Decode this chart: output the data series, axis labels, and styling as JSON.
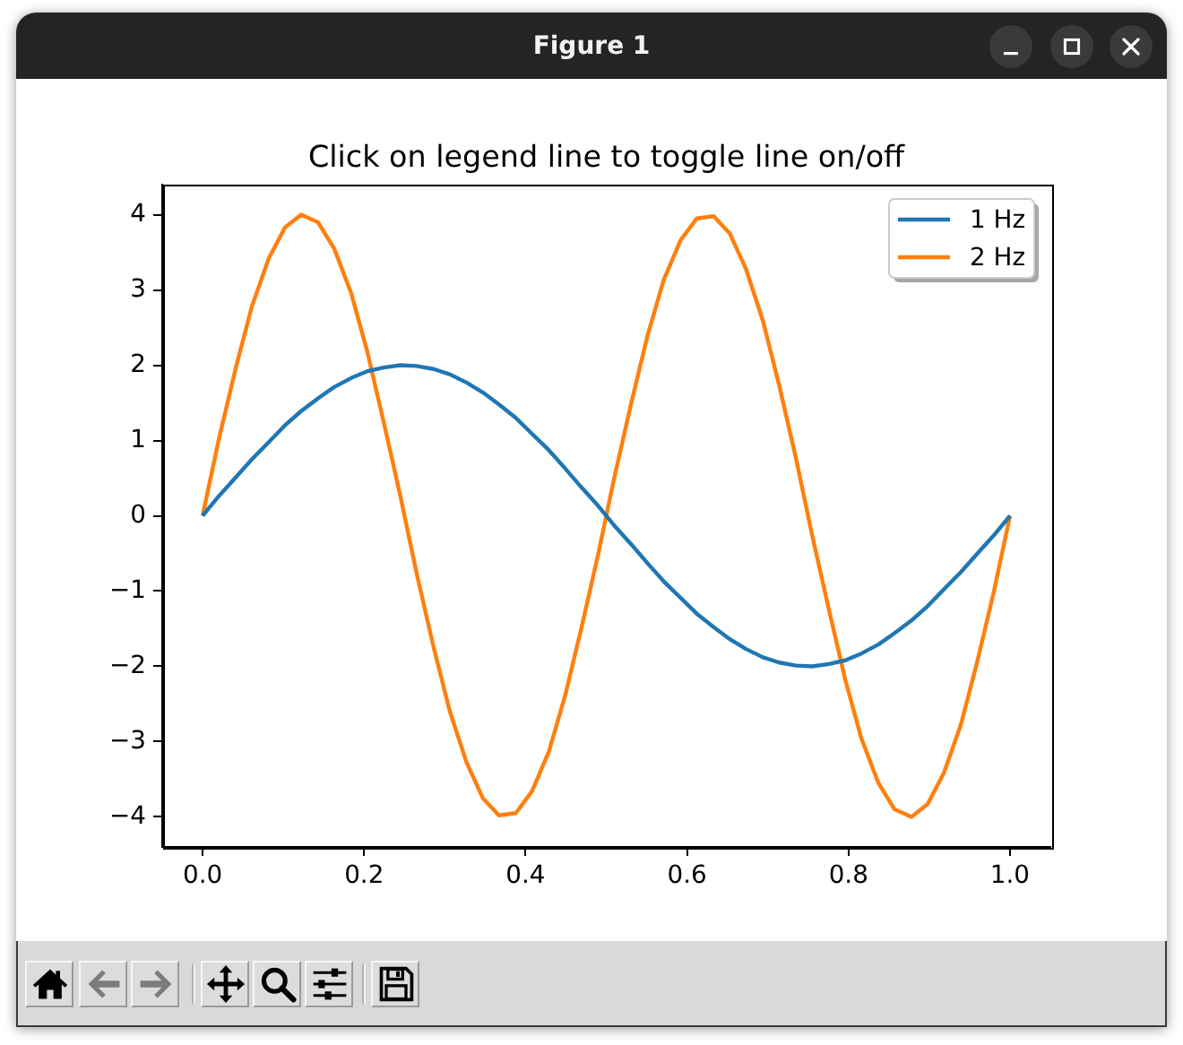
{
  "chart_data": {
    "type": "line",
    "title": "Click on legend line to toggle line on/off",
    "annotations": [
      "Figure 1"
    ],
    "x": [
      0,
      0.02,
      0.041,
      0.061,
      0.082,
      0.102,
      0.122,
      0.143,
      0.163,
      0.184,
      0.204,
      0.224,
      0.245,
      0.265,
      0.286,
      0.306,
      0.327,
      0.347,
      0.367,
      0.388,
      0.408,
      0.429,
      0.449,
      0.469,
      0.49,
      0.51,
      0.531,
      0.551,
      0.571,
      0.592,
      0.612,
      0.633,
      0.653,
      0.673,
      0.694,
      0.714,
      0.735,
      0.755,
      0.776,
      0.796,
      0.816,
      0.837,
      0.857,
      0.878,
      0.898,
      0.918,
      0.939,
      0.959,
      0.98,
      1
    ],
    "series": [
      {
        "name": "1 Hz",
        "color": "#1f77b4",
        "values": [
          0,
          0.26,
          0.51,
          0.75,
          0.98,
          1.2,
          1.39,
          1.56,
          1.71,
          1.83,
          1.92,
          1.97,
          2,
          1.99,
          1.95,
          1.88,
          1.77,
          1.64,
          1.48,
          1.3,
          1.09,
          0.87,
          0.63,
          0.38,
          0.13,
          -0.13,
          -0.38,
          -0.63,
          -0.87,
          -1.09,
          -1.3,
          -1.48,
          -1.64,
          -1.77,
          -1.88,
          -1.95,
          -1.99,
          -2,
          -1.97,
          -1.92,
          -1.83,
          -1.71,
          -1.56,
          -1.39,
          -1.2,
          -0.98,
          -0.75,
          -0.51,
          -0.26,
          0
        ]
      },
      {
        "name": "2 Hz",
        "color": "#ff7f0e",
        "values": [
          0,
          1.01,
          1.96,
          2.78,
          3.42,
          3.83,
          4,
          3.9,
          3.55,
          2.96,
          2.18,
          1.26,
          0.26,
          -0.76,
          -1.74,
          -2.59,
          -3.28,
          -3.75,
          -3.98,
          -3.95,
          -3.66,
          -3.13,
          -2.39,
          -1.5,
          -0.51,
          0.51,
          1.5,
          2.39,
          3.13,
          3.66,
          3.95,
          3.98,
          3.75,
          3.28,
          2.59,
          1.74,
          0.76,
          -0.26,
          -1.26,
          -2.18,
          -2.96,
          -3.55,
          -3.9,
          -4,
          -3.83,
          -3.42,
          -2.78,
          -1.96,
          -1.01,
          0
        ]
      }
    ],
    "xlim": [
      -0.05,
      1.05
    ],
    "xticks": [
      {
        "value": 0,
        "label": "0.0"
      },
      {
        "value": 0.2,
        "label": "0.2"
      },
      {
        "value": 0.4,
        "label": "0.4"
      },
      {
        "value": 0.6,
        "label": "0.6"
      },
      {
        "value": 0.8,
        "label": "0.8"
      },
      {
        "value": 1,
        "label": "1.0"
      }
    ],
    "ylim": [
      -4.4,
      4.4
    ],
    "yticks": [
      {
        "value": -4,
        "label": "−4"
      },
      {
        "value": -3,
        "label": "−3"
      },
      {
        "value": -2,
        "label": "−2"
      },
      {
        "value": -1,
        "label": "−1"
      },
      0,
      1,
      2,
      3,
      4
    ],
    "legend": "top right"
  }
}
